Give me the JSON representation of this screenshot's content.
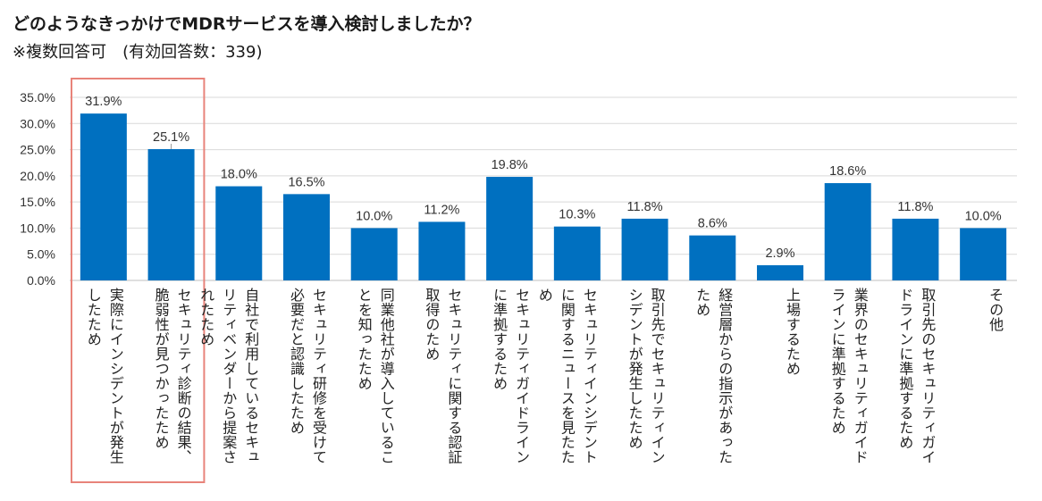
{
  "header": {
    "title": "どのようなきっかけでMDRサービスを導入検討しましたか？",
    "subtitle": "※複数回答可　(有効回答数：339)"
  },
  "colors": {
    "bar": "#0070C0",
    "grid": "#d9d9d9",
    "highlight": "#E8837A"
  },
  "chart_data": {
    "type": "bar",
    "title": "どのようなきっかけでMDRサービスを導入検討しましたか？",
    "xlabel": "",
    "ylabel": "",
    "ylim": [
      0,
      35
    ],
    "yticks": [
      "0.0%",
      "5.0%",
      "10.0%",
      "15.0%",
      "20.0%",
      "25.0%",
      "30.0%",
      "35.0%"
    ],
    "grid": true,
    "categories": [
      "実際にインシデントが発生したため",
      "セキュリティ診断の結果、脆弱性が見つかったため",
      "自社で利用しているセキュリティベンダーから提案されたため",
      "セキュリティ研修を受けて必要だと認識したため",
      "同業他社が導入していることを知ったため",
      "セキュリティに関する認証取得のため",
      "セキュリティガイドラインに準拠するため",
      "セキュリティインシデントに関するニュースを見たため",
      "取引先でセキュリティインシデントが発生したため",
      "経営層からの指示があったため",
      "上場するため",
      "業界のセキュリティガイドラインに準拠するため",
      "取引先のセキュリティガイドラインに準拠するため",
      "その他"
    ],
    "values": [
      31.9,
      25.1,
      18.0,
      16.5,
      10.0,
      11.2,
      19.8,
      10.3,
      11.8,
      8.6,
      2.9,
      18.6,
      11.8,
      10.0
    ],
    "value_labels": [
      "31.9%",
      "25.1%",
      "18.0%",
      "16.5%",
      "10.0%",
      "11.2%",
      "19.8%",
      "10.3%",
      "11.8%",
      "8.6%",
      "2.9%",
      "18.6%",
      "11.8%",
      "10.0%"
    ],
    "highlighted_categories": [
      0,
      1
    ]
  }
}
